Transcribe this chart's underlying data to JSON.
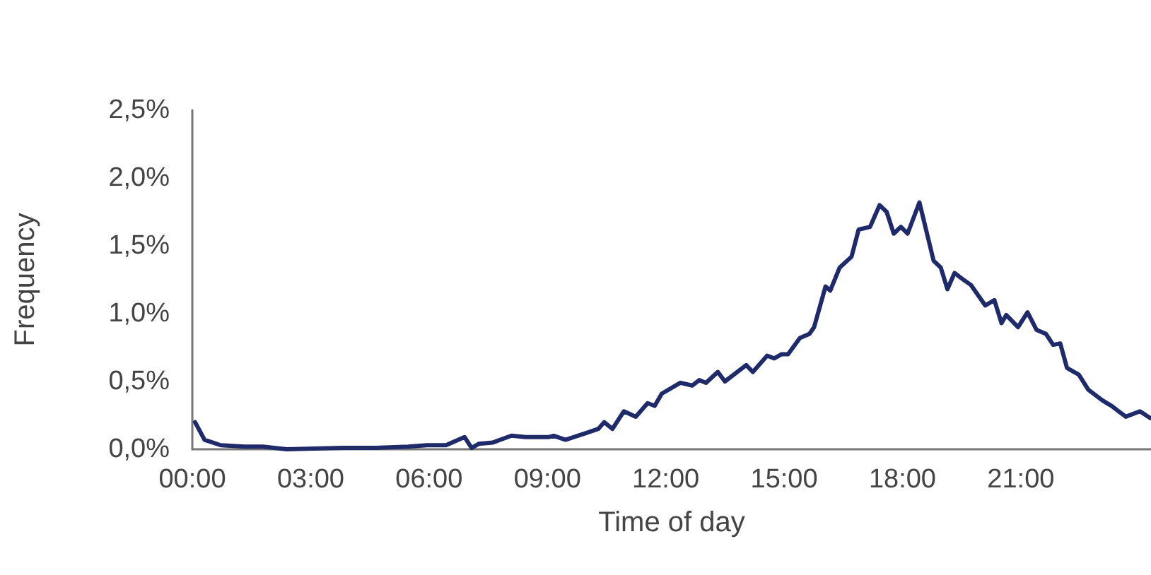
{
  "chart_data": {
    "type": "line",
    "xlabel": "Time of day",
    "ylabel": "Frequency",
    "xlim": [
      0,
      24.3
    ],
    "ylim": [
      0,
      2.5
    ],
    "xticks": [
      {
        "value": 0,
        "label": "00:00"
      },
      {
        "value": 3,
        "label": "03:00"
      },
      {
        "value": 6,
        "label": "06:00"
      },
      {
        "value": 9,
        "label": "09:00"
      },
      {
        "value": 12,
        "label": "12:00"
      },
      {
        "value": 15,
        "label": "15:00"
      },
      {
        "value": 18,
        "label": "18:00"
      },
      {
        "value": 21,
        "label": "21:00"
      }
    ],
    "yticks": [
      {
        "value": 0,
        "label": "0,0%"
      },
      {
        "value": 0.5,
        "label": "0,5%"
      },
      {
        "value": 1,
        "label": "1,0%"
      },
      {
        "value": 1.5,
        "label": "1,5%"
      },
      {
        "value": 2,
        "label": "2,0%"
      },
      {
        "value": 2.5,
        "label": "2,5%"
      }
    ],
    "grid": false,
    "marker": "none",
    "line_style": "solid",
    "series": [
      {
        "color": "#1f2a6b",
        "x": [
          0.07,
          0.31,
          0.72,
          1.32,
          1.79,
          2.39,
          3.81,
          4.65,
          5.48,
          5.95,
          6.43,
          6.9,
          7.08,
          7.26,
          7.62,
          8.09,
          8.45,
          9.04,
          9.16,
          9.46,
          9.99,
          10.29,
          10.44,
          10.65,
          10.94,
          11.24,
          11.54,
          11.72,
          11.9,
          12.37,
          12.67,
          12.85,
          13.02,
          13.32,
          13.5,
          14.04,
          14.21,
          14.57,
          14.75,
          14.93,
          15.1,
          15.4,
          15.64,
          15.76,
          16.05,
          16.17,
          16.41,
          16.71,
          16.89,
          17.18,
          17.42,
          17.6,
          17.78,
          17.96,
          18.13,
          18.43,
          18.79,
          18.97,
          19.14,
          19.32,
          19.5,
          19.74,
          20.1,
          20.33,
          20.51,
          20.63,
          20.93,
          21.17,
          21.4,
          21.64,
          21.82,
          22,
          22.17,
          22.47,
          22.71,
          23.07,
          23.3,
          23.66,
          24.02,
          24.28
        ],
        "values": [
          0.2,
          0.07,
          0.03,
          0.02,
          0.02,
          0,
          0.01,
          0.01,
          0.02,
          0.03,
          0.03,
          0.09,
          0.01,
          0.04,
          0.05,
          0.1,
          0.09,
          0.09,
          0.1,
          0.07,
          0.12,
          0.15,
          0.2,
          0.15,
          0.28,
          0.24,
          0.34,
          0.32,
          0.41,
          0.49,
          0.47,
          0.51,
          0.49,
          0.57,
          0.5,
          0.62,
          0.57,
          0.69,
          0.67,
          0.7,
          0.7,
          0.82,
          0.85,
          0.9,
          1.2,
          1.17,
          1.34,
          1.42,
          1.62,
          1.64,
          1.8,
          1.75,
          1.59,
          1.64,
          1.59,
          1.82,
          1.39,
          1.34,
          1.18,
          1.3,
          1.26,
          1.21,
          1.06,
          1.1,
          0.93,
          0.99,
          0.9,
          1.01,
          0.88,
          0.85,
          0.77,
          0.78,
          0.6,
          0.55,
          0.44,
          0.36,
          0.32,
          0.24,
          0.28,
          0.23
        ]
      }
    ]
  }
}
